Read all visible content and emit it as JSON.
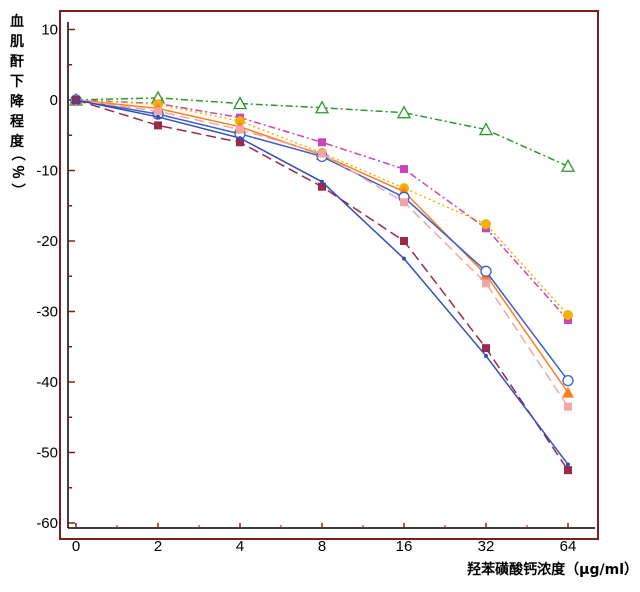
{
  "chart_data": {
    "type": "line",
    "title": "",
    "xlabel": "羟苯磺酸钙浓度（μg/ml）",
    "ylabel_chars": [
      "血",
      "肌",
      "酐",
      "下",
      "降",
      "程",
      "度"
    ],
    "ylabel_unit": "（％）",
    "x": [
      "0",
      "2",
      "4",
      "8",
      "16",
      "32",
      "64"
    ],
    "yticks": [
      "10",
      "0",
      "-10",
      "-20",
      "-30",
      "-40",
      "-50",
      "-60"
    ],
    "ylim": [
      -62,
      11
    ],
    "grid": false,
    "colors": {
      "frame": "#7a1f1f",
      "axes": "#000000",
      "tick": "#7a1f1f"
    },
    "series": [
      {
        "color": "#2a9a2a",
        "dash": "dashdot",
        "marker": "open-triangle",
        "values": [
          0,
          0.3,
          -0.5,
          -1.1,
          -1.8,
          -4.2,
          -9.4
        ]
      },
      {
        "color": "#cc44bb",
        "dash": "dashdot",
        "marker": "square",
        "values": [
          0,
          -0.5,
          -2.5,
          -6,
          -9.8,
          -18.2,
          -31.2
        ]
      },
      {
        "color": "#f0b400",
        "dash": "dotted",
        "marker": "circle",
        "values": [
          0,
          -0.6,
          -3,
          -7.5,
          -12.5,
          -17.6,
          -30.5
        ]
      },
      {
        "color": "#ff7f1f",
        "dash": "solid",
        "marker": "triangle",
        "values": [
          0,
          -1.2,
          -3.8,
          -7.8,
          -13,
          -24.8,
          -41.5
        ]
      },
      {
        "color": "#3a5fcd",
        "dash": "solid",
        "marker": "open-circle",
        "values": [
          0,
          -2,
          -4.8,
          -8,
          -13.8,
          -24.3,
          -39.8
        ]
      },
      {
        "color": "#f4a6a6",
        "dash": "longdash",
        "marker": "square",
        "values": [
          0,
          -1.6,
          -4.2,
          -7.6,
          -14.5,
          -26,
          -43.5
        ]
      },
      {
        "color": "#9a2a4a",
        "dash": "longdash",
        "marker": "square",
        "values": [
          0,
          -3.6,
          -6,
          -12.3,
          -20,
          -35.2,
          -52.5
        ]
      },
      {
        "color": "#3050b8",
        "dash": "solid",
        "marker": "dot",
        "values": [
          0,
          -2.4,
          -5.4,
          -11.6,
          -22.5,
          -36.3,
          -51.7
        ]
      }
    ]
  }
}
